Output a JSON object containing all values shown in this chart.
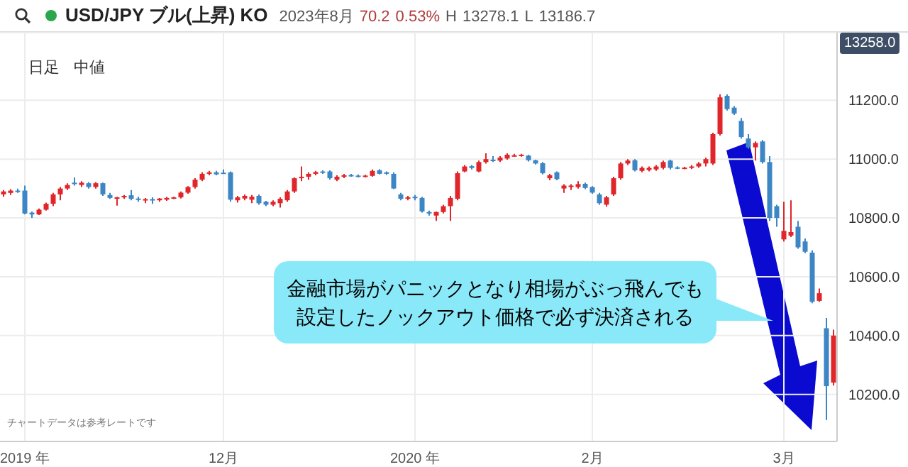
{
  "chart_data": {
    "type": "candlestick",
    "title": "USD/JPY ブル(上昇) KO",
    "subtitle": "2023年8月 70.2 0.53% H 13278.1 L 13186.7",
    "annotations": [
      "日足",
      "中値",
      "13258.0",
      "チャートデータは参考レートです",
      "金融市場がパニックとなり相場がぶっ飛んでも",
      "設定したノックアウト価格で必ず決済される"
    ],
    "categories": [
      null,
      null,
      null,
      "2019 年",
      null,
      null,
      null,
      null,
      null,
      null,
      null,
      null,
      null,
      null,
      null,
      null,
      null,
      null,
      null,
      null,
      null,
      null,
      null,
      null,
      null,
      null,
      null,
      null,
      null,
      null,
      null,
      "12月",
      null,
      null,
      null,
      null,
      null,
      null,
      null,
      null,
      null,
      null,
      null,
      null,
      null,
      null,
      null,
      null,
      null,
      null,
      null,
      null,
      null,
      null,
      null,
      null,
      null,
      null,
      "2020 年",
      null,
      null,
      null,
      null,
      null,
      null,
      null,
      null,
      null,
      null,
      null,
      null,
      null,
      null,
      null,
      null,
      null,
      null,
      null,
      null,
      null,
      null,
      null,
      null,
      "2月",
      null,
      null,
      null,
      null,
      null,
      null,
      null,
      null,
      null,
      null,
      null,
      null,
      null,
      null,
      null,
      null,
      null,
      null,
      null,
      null,
      null,
      null,
      null,
      null,
      null,
      null,
      "3月",
      null,
      null,
      null,
      null,
      null,
      null,
      null
    ],
    "ohlc": [
      [
        10880,
        10895,
        10872,
        10890
      ],
      [
        10885,
        10898,
        10878,
        10893
      ],
      [
        10893,
        10900,
        10885,
        10888
      ],
      [
        10893,
        10910,
        10812,
        10815
      ],
      [
        10818,
        10822,
        10800,
        10812
      ],
      [
        10812,
        10832,
        10810,
        10828
      ],
      [
        10828,
        10852,
        10825,
        10848
      ],
      [
        10848,
        10885,
        10840,
        10880
      ],
      [
        10880,
        10905,
        10860,
        10900
      ],
      [
        10900,
        10918,
        10895,
        10912
      ],
      [
        10920,
        10938,
        10910,
        10915
      ],
      [
        10912,
        10925,
        10905,
        10920
      ],
      [
        10918,
        10922,
        10900,
        10905
      ],
      [
        10905,
        10922,
        10900,
        10918
      ],
      [
        10918,
        10920,
        10875,
        10880
      ],
      [
        10878,
        10885,
        10865,
        10868
      ],
      [
        10865,
        10872,
        10842,
        10870
      ],
      [
        10870,
        10878,
        10865,
        10875
      ],
      [
        10877,
        10895,
        10860,
        10865
      ],
      [
        10866,
        10872,
        10855,
        10862
      ],
      [
        10862,
        10868,
        10850,
        10864
      ],
      [
        10864,
        10870,
        10848,
        10860
      ],
      [
        10860,
        10868,
        10855,
        10866
      ],
      [
        10862,
        10872,
        10858,
        10868
      ],
      [
        10868,
        10872,
        10864,
        10870
      ],
      [
        10870,
        10890,
        10866,
        10886
      ],
      [
        10886,
        10908,
        10882,
        10905
      ],
      [
        10905,
        10935,
        10900,
        10930
      ],
      [
        10930,
        10955,
        10925,
        10950
      ],
      [
        10950,
        10960,
        10945,
        10955
      ],
      [
        10955,
        10960,
        10945,
        10948
      ],
      [
        10954,
        10965,
        10950,
        10952
      ],
      [
        10955,
        10958,
        10855,
        10862
      ],
      [
        10860,
        10875,
        10852,
        10870
      ],
      [
        10866,
        10880,
        10860,
        10875
      ],
      [
        10862,
        10878,
        10850,
        10872
      ],
      [
        10875,
        10880,
        10845,
        10850
      ],
      [
        10855,
        10858,
        10840,
        10845
      ],
      [
        10845,
        10860,
        10840,
        10855
      ],
      [
        10850,
        10870,
        10835,
        10865
      ],
      [
        10860,
        10895,
        10855,
        10890
      ],
      [
        10890,
        10938,
        10885,
        10935
      ],
      [
        10935,
        10975,
        10925,
        10940
      ],
      [
        10940,
        10955,
        10930,
        10950
      ],
      [
        10950,
        10960,
        10945,
        10956
      ],
      [
        10958,
        10962,
        10950,
        10955
      ],
      [
        10958,
        10962,
        10930,
        10935
      ],
      [
        10930,
        10945,
        10925,
        10940
      ],
      [
        10940,
        10950,
        10935,
        10945
      ],
      [
        10946,
        10950,
        10940,
        10944
      ],
      [
        10944,
        10948,
        10938,
        10943
      ],
      [
        10942,
        10947,
        10938,
        10944
      ],
      [
        10943,
        10965,
        10940,
        10960
      ],
      [
        10962,
        10966,
        10948,
        10950
      ],
      [
        10955,
        10958,
        10946,
        10950
      ],
      [
        10950,
        10955,
        10898,
        10900
      ],
      [
        10880,
        10885,
        10860,
        10865
      ],
      [
        10866,
        10875,
        10860,
        10870
      ],
      [
        10872,
        10878,
        10860,
        10868
      ],
      [
        10868,
        10872,
        10818,
        10822
      ],
      [
        10820,
        10825,
        10808,
        10815
      ],
      [
        10808,
        10822,
        10790,
        10820
      ],
      [
        10820,
        10845,
        10815,
        10840
      ],
      [
        10840,
        10875,
        10790,
        10868
      ],
      [
        10865,
        10958,
        10860,
        10952
      ],
      [
        10958,
        10980,
        10955,
        10975
      ],
      [
        10976,
        10980,
        10965,
        10970
      ],
      [
        10958,
        10995,
        10955,
        10990
      ],
      [
        10990,
        11020,
        10985,
        11000
      ],
      [
        10998,
        11010,
        10990,
        10994
      ],
      [
        10995,
        11010,
        10990,
        11005
      ],
      [
        11002,
        11020,
        10998,
        11015
      ],
      [
        11012,
        11018,
        11008,
        11013
      ],
      [
        11012,
        11018,
        11008,
        11015
      ],
      [
        11012,
        11015,
        10992,
        10996
      ],
      [
        10996,
        10998,
        10982,
        10985
      ],
      [
        10986,
        10990,
        10948,
        10952
      ],
      [
        10935,
        10950,
        10928,
        10945
      ],
      [
        10955,
        10958,
        10928,
        10932
      ],
      [
        10900,
        10915,
        10885,
        10910
      ],
      [
        10905,
        10915,
        10895,
        10910
      ],
      [
        10905,
        10925,
        10900,
        10915
      ],
      [
        10916,
        10920,
        10898,
        10902
      ],
      [
        10905,
        10908,
        10882,
        10886
      ],
      [
        10880,
        10885,
        10845,
        10850
      ],
      [
        10845,
        10875,
        10838,
        10870
      ],
      [
        10880,
        10940,
        10875,
        10935
      ],
      [
        10935,
        10990,
        10930,
        10985
      ],
      [
        10985,
        11000,
        10980,
        10995
      ],
      [
        10996,
        11000,
        10958,
        10962
      ],
      [
        10960,
        10975,
        10955,
        10970
      ],
      [
        10963,
        10975,
        10958,
        10970
      ],
      [
        10965,
        10980,
        10960,
        10975
      ],
      [
        10970,
        10995,
        10965,
        10990
      ],
      [
        10995,
        10998,
        10965,
        10970
      ],
      [
        10972,
        10976,
        10966,
        10970
      ],
      [
        10970,
        10974,
        10966,
        10971
      ],
      [
        10970,
        10980,
        10966,
        10975
      ],
      [
        10975,
        10990,
        10970,
        10985
      ],
      [
        10985,
        11005,
        10975,
        11000
      ],
      [
        10985,
        11090,
        10980,
        11085
      ],
      [
        11085,
        11220,
        11080,
        11210
      ],
      [
        11215,
        11220,
        11165,
        11170
      ],
      [
        11175,
        11180,
        11150,
        11155
      ],
      [
        11130,
        11140,
        11070,
        11075
      ],
      [
        11070,
        11085,
        11035,
        11040
      ],
      [
        11040,
        11060,
        10995,
        11055
      ],
      [
        11060,
        11065,
        10985,
        10990
      ],
      [
        10990,
        11010,
        10790,
        10800
      ],
      [
        10840,
        10845,
        10770,
        10800
      ],
      [
        10727,
        10855,
        10720,
        10756
      ],
      [
        10740,
        10860,
        10735,
        10752
      ],
      [
        10770,
        10790,
        10695,
        10700
      ],
      [
        10720,
        10730,
        10680,
        10685
      ],
      [
        10682,
        10690,
        10510,
        10515
      ],
      [
        10518,
        10560,
        10515,
        10544
      ],
      [
        10425,
        10460,
        10113,
        10228
      ],
      [
        10240,
        10420,
        10230,
        10400
      ]
    ],
    "colors": [
      "#e0262b",
      "#e0262b",
      "#3d86c6",
      "#3d86c6",
      "#3d86c6",
      "#e0262b",
      "#e0262b",
      "#e0262b",
      "#e0262b",
      "#e0262b",
      "#3d86c6",
      "#e0262b",
      "#3d86c6",
      "#e0262b",
      "#3d86c6",
      "#3d86c6",
      "#e0262b",
      "#e0262b",
      "#3d86c6",
      "#3d86c6",
      "#e0262b",
      "#3d86c6",
      "#e0262b",
      "#e0262b",
      "#e0262b",
      "#e0262b",
      "#e0262b",
      "#e0262b",
      "#e0262b",
      "#e0262b",
      "#3d86c6",
      "#3d86c6",
      "#3d86c6",
      "#e0262b",
      "#e0262b",
      "#e0262b",
      "#3d86c6",
      "#3d86c6",
      "#e0262b",
      "#e0262b",
      "#e0262b",
      "#e0262b",
      "#e0262b",
      "#e0262b",
      "#e0262b",
      "#3d86c6",
      "#3d86c6",
      "#e0262b",
      "#e0262b",
      "#3d86c6",
      "#3d86c6",
      "#e0262b",
      "#e0262b",
      "#3d86c6",
      "#3d86c6",
      "#3d86c6",
      "#3d86c6",
      "#e0262b",
      "#3d86c6",
      "#3d86c6",
      "#3d86c6",
      "#e0262b",
      "#e0262b",
      "#e0262b",
      "#e0262b",
      "#e0262b",
      "#3d86c6",
      "#e0262b",
      "#e0262b",
      "#3d86c6",
      "#e0262b",
      "#e0262b",
      "#e0262b",
      "#e0262b",
      "#3d86c6",
      "#3d86c6",
      "#3d86c6",
      "#e0262b",
      "#3d86c6",
      "#e0262b",
      "#e0262b",
      "#e0262b",
      "#3d86c6",
      "#3d86c6",
      "#3d86c6",
      "#e0262b",
      "#e0262b",
      "#e0262b",
      "#e0262b",
      "#3d86c6",
      "#e0262b",
      "#e0262b",
      "#e0262b",
      "#e0262b",
      "#3d86c6",
      "#3d86c6",
      "#e0262b",
      "#e0262b",
      "#e0262b",
      "#e0262b",
      "#e0262b",
      "#e0262b",
      "#3d86c6",
      "#3d86c6",
      "#3d86c6",
      "#3d86c6",
      "#e0262b",
      "#3d86c6",
      "#3d86c6",
      "#3d86c6",
      "#e0262b",
      "#e0262b",
      "#3d86c6",
      "#3d86c6",
      "#3d86c6",
      "#e0262b",
      "#3d86c6",
      "#e0262b"
    ],
    "ylim": [
      10040,
      11430
    ],
    "yticks": [
      {
        "value": 10200,
        "label": "10200.0"
      },
      {
        "value": 10400,
        "label": "10400.0"
      },
      {
        "value": 10600,
        "label": "10600.0"
      },
      {
        "value": 10800,
        "label": "10800.0"
      },
      {
        "value": 11000,
        "label": "11000.0"
      },
      {
        "value": 11200,
        "label": "11200.0"
      }
    ],
    "grid": true
  }
}
